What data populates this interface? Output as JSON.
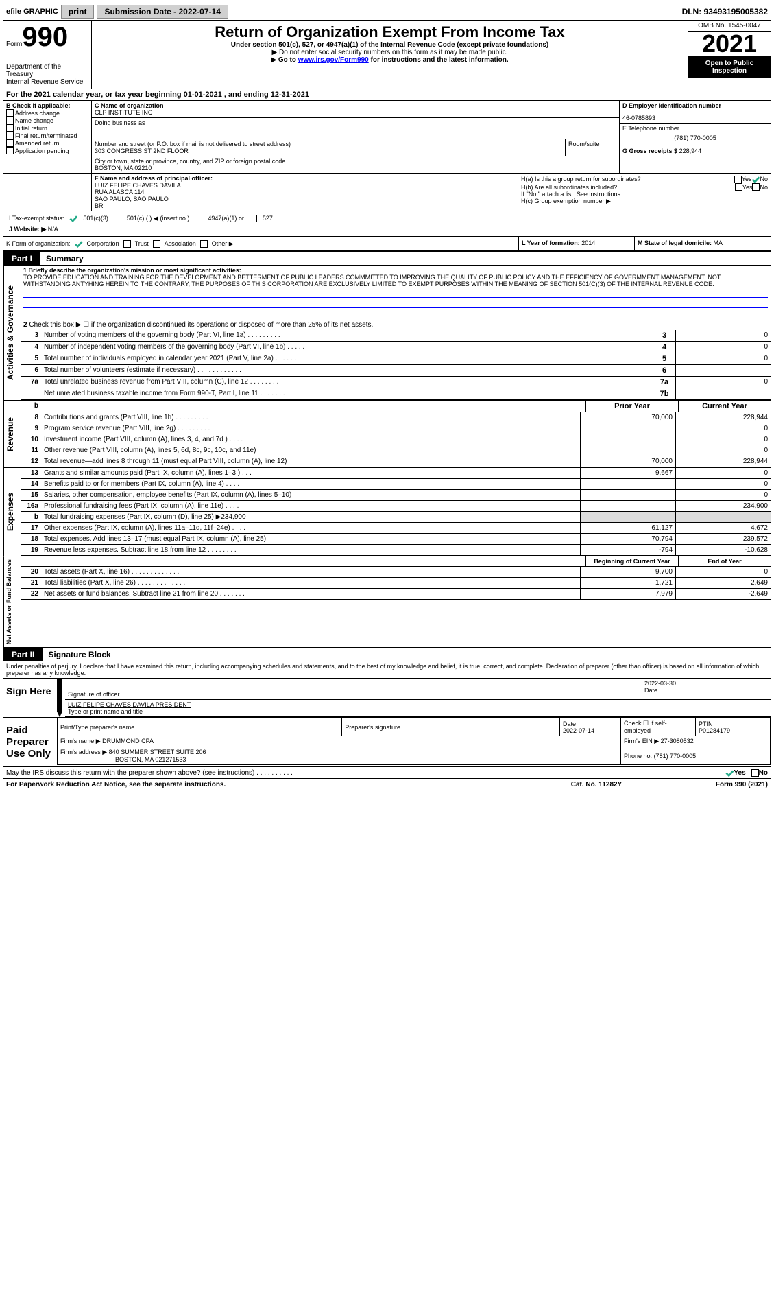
{
  "topbar": {
    "efile": "efile GRAPHIC",
    "print": "print",
    "sub_date_label": "Submission Date - 2022-07-14",
    "dln": "DLN: 93493195005382"
  },
  "header": {
    "form_label": "Form",
    "form_no": "990",
    "dept": "Department of the Treasury",
    "irs": "Internal Revenue Service",
    "title": "Return of Organization Exempt From Income Tax",
    "sub1": "Under section 501(c), 527, or 4947(a)(1) of the Internal Revenue Code (except private foundations)",
    "sub2": "▶ Do not enter social security numbers on this form as it may be made public.",
    "sub3": "▶ Go to ",
    "sub3_link": "www.irs.gov/Form990",
    "sub3_rest": " for instructions and the latest information.",
    "omb": "OMB No. 1545-0047",
    "year": "2021",
    "open": "Open to Public Inspection"
  },
  "line_a": "For the 2021 calendar year, or tax year beginning 01-01-2021  , and ending 12-31-2021",
  "sec_b": {
    "title": "B Check if applicable:",
    "opts": [
      "Address change",
      "Name change",
      "Initial return",
      "Final return/terminated",
      "Amended return",
      "Application pending"
    ]
  },
  "sec_c": {
    "label_name": "C Name of organization",
    "name": "CLP INSTITUTE INC",
    "dba": "Doing business as",
    "addr_label": "Number and street (or P.O. box if mail is not delivered to street address)",
    "room_label": "Room/suite",
    "addr": "303 CONGRESS ST 2ND FLOOR",
    "city_label": "City or town, state or province, country, and ZIP or foreign postal code",
    "city": "BOSTON, MA  02210"
  },
  "sec_d": {
    "label": "D Employer identification number",
    "val": "46-0785893"
  },
  "sec_e": {
    "label": "E Telephone number",
    "val": "(781) 770-0005"
  },
  "sec_g": {
    "label": "G Gross receipts $",
    "val": "228,944"
  },
  "sec_f": {
    "label": "F  Name and address of principal officer:",
    "name": "LUIZ FELIPE CHAVES DAVILA",
    "addr1": "RUA ALASCA 114",
    "addr2": "SAO PAULO, SAO PAULO",
    "addr3": "BR"
  },
  "sec_h": {
    "ha": "H(a)  Is this a group return for subordinates?",
    "hb": "H(b)  Are all subordinates included?",
    "hnote": "If \"No,\" attach a list. See instructions.",
    "hc": "H(c)  Group exemption number ▶"
  },
  "sec_i": {
    "label": "I    Tax-exempt status:",
    "opts": [
      "501(c)(3)",
      "501(c) (  ) ◀ (insert no.)",
      "4947(a)(1) or",
      "527"
    ]
  },
  "sec_j": {
    "label": "J   Website: ▶",
    "val": "N/A"
  },
  "sec_k": {
    "label": "K Form of organization:",
    "opts": [
      "Corporation",
      "Trust",
      "Association",
      "Other ▶"
    ]
  },
  "sec_l": {
    "label": "L Year of formation:",
    "val": "2014"
  },
  "sec_m": {
    "label": "M State of legal domicile:",
    "val": "MA"
  },
  "part1": {
    "label": "Part I",
    "title": "Summary"
  },
  "mission": {
    "label": "1  Briefly describe the organization's mission or most significant activities:",
    "text": "TO PROVIDE EDUCATION AND TRAINING FOR THE DEVELOPMENT AND BETTERMENT OF PUBLIC LEADERS COMMMITTED TO IMPROVING THE QUALITY OF PUBLIC POLICY AND THE EFFICIENCY OF GOVERMMENT MANAGEMENT. NOT WITHSTANDING ANTYHING HEREIN TO THE CONTRARY, THE PURPOSES OF THIS CORPORATION ARE EXCLUSIVELY LIMITED TO EXEMPT PURPOSES WITHIN THE MEANING OF SECTION 501(C)(3) OF THE INTERNAL REVENUE CODE."
  },
  "activities": {
    "vlabel": "Activities & Governance",
    "l2": "Check this box ▶ ☐ if the organization discontinued its operations or disposed of more than 25% of its net assets.",
    "rows": [
      {
        "n": "3",
        "t": "Number of voting members of the governing body (Part VI, line 1a)  .    .    .    .    .    .    .    .    .",
        "c": "3",
        "v": "0"
      },
      {
        "n": "4",
        "t": "Number of independent voting members of the governing body (Part VI, line 1b)   .    .    .    .    .",
        "c": "4",
        "v": "0"
      },
      {
        "n": "5",
        "t": "Total number of individuals employed in calendar year 2021 (Part V, line 2a)    .    .    .    .    .    .",
        "c": "5",
        "v": "0"
      },
      {
        "n": "6",
        "t": "Total number of volunteers (estimate if necessary)   .    .    .    .    .    .    .    .    .    .    .    .",
        "c": "6",
        "v": ""
      },
      {
        "n": "7a",
        "t": "Total unrelated business revenue from Part VIII, column (C), line 12    .    .    .    .    .    .    .    .",
        "c": "7a",
        "v": "0"
      },
      {
        "n": "",
        "t": "Net unrelated business taxable income from Form 990-T, Part I, line 11    .    .    .    .    .    .    .",
        "c": "7b",
        "v": ""
      }
    ]
  },
  "revenue": {
    "vlabel": "Revenue",
    "prior": "Prior Year",
    "current": "Current Year",
    "rows": [
      {
        "n": "8",
        "t": "Contributions and grants (Part VIII, line 1h)    .    .    .    .    .    .    .    .    .",
        "p": "70,000",
        "c": "228,944"
      },
      {
        "n": "9",
        "t": "Program service revenue (Part VIII, line 2g)    .    .    .    .    .    .    .    .    .",
        "p": "",
        "c": "0"
      },
      {
        "n": "10",
        "t": "Investment income (Part VIII, column (A), lines 3, 4, and 7d )    .    .    .    .",
        "p": "",
        "c": "0"
      },
      {
        "n": "11",
        "t": "Other revenue (Part VIII, column (A), lines 5, 6d, 8c, 9c, 10c, and 11e)",
        "p": "",
        "c": "0"
      },
      {
        "n": "12",
        "t": "Total revenue—add lines 8 through 11 (must equal Part VIII, column (A), line 12)",
        "p": "70,000",
        "c": "228,944"
      }
    ]
  },
  "expenses": {
    "vlabel": "Expenses",
    "rows": [
      {
        "n": "13",
        "t": "Grants and similar amounts paid (Part IX, column (A), lines 1–3 )    .    .    .",
        "p": "9,667",
        "c": "0"
      },
      {
        "n": "14",
        "t": "Benefits paid to or for members (Part IX, column (A), line 4)    .    .    .    .",
        "p": "",
        "c": "0"
      },
      {
        "n": "15",
        "t": "Salaries, other compensation, employee benefits (Part IX, column (A), lines 5–10)",
        "p": "",
        "c": "0"
      },
      {
        "n": "16a",
        "t": "Professional fundraising fees (Part IX, column (A), line 11e)    .    .    .    .",
        "p": "",
        "c": "234,900"
      },
      {
        "n": "b",
        "t": "Total fundraising expenses (Part IX, column (D), line 25) ▶234,900",
        "p": "shaded",
        "c": "shaded"
      },
      {
        "n": "17",
        "t": "Other expenses (Part IX, column (A), lines 11a–11d, 11f–24e)    .    .    .    .",
        "p": "61,127",
        "c": "4,672"
      },
      {
        "n": "18",
        "t": "Total expenses. Add lines 13–17 (must equal Part IX, column (A), line 25)",
        "p": "70,794",
        "c": "239,572"
      },
      {
        "n": "19",
        "t": "Revenue less expenses. Subtract line 18 from line 12    .    .    .    .    .    .    .    .",
        "p": "-794",
        "c": "-10,628"
      }
    ]
  },
  "netassets": {
    "vlabel": "Net Assets or Fund Balances",
    "begin": "Beginning of Current Year",
    "end": "End of Year",
    "rows": [
      {
        "n": "20",
        "t": "Total assets (Part X, line 16)    .    .    .    .    .    .    .    .    .    .    .    .    .    .",
        "p": "9,700",
        "c": "0"
      },
      {
        "n": "21",
        "t": "Total liabilities (Part X, line 26)    .    .    .    .    .    .    .    .    .    .    .    .    .",
        "p": "1,721",
        "c": "2,649"
      },
      {
        "n": "22",
        "t": "Net assets or fund balances. Subtract line 21 from line 20    .    .    .    .    .    .    .",
        "p": "7,979",
        "c": "-2,649"
      }
    ]
  },
  "part2": {
    "label": "Part II",
    "title": "Signature Block"
  },
  "sig": {
    "decl": "Under penalties of perjury, I declare that I have examined this return, including accompanying schedules and statements, and to the best of my knowledge and belief, it is true, correct, and complete. Declaration of preparer (other than officer) is based on all information of which preparer has any knowledge.",
    "sign_here": "Sign Here",
    "sig_officer": "Signature of officer",
    "date": "2022-03-30",
    "date_label": "Date",
    "name": "LUIZ FELIPE CHAVES DAVILA  PRESIDENT",
    "name_label": "Type or print name and title",
    "paid": "Paid Preparer Use Only",
    "prep_name_label": "Print/Type preparer's name",
    "prep_sig_label": "Preparer's signature",
    "prep_date": "2022-07-14",
    "self_emp": "Check ☐ if self-employed",
    "ptin_label": "PTIN",
    "ptin": "P01284179",
    "firm_name_label": "Firm's name    ▶",
    "firm_name": "DRUMMOND CPA",
    "firm_ein_label": "Firm's EIN ▶",
    "firm_ein": "27-3080532",
    "firm_addr_label": "Firm's address ▶",
    "firm_addr1": "840 SUMMER STREET SUITE 206",
    "firm_addr2": "BOSTON, MA  021271533",
    "phone_label": "Phone no.",
    "phone": "(781) 770-0005",
    "discuss": "May the IRS discuss this return with the preparer shown above? (see instructions)    .    .    .    .    .    .    .    .    .    ."
  },
  "footer": {
    "left": "For Paperwork Reduction Act Notice, see the separate instructions.",
    "mid": "Cat. No. 11282Y",
    "right": "Form 990 (2021)"
  },
  "yes": "Yes",
  "no": "No"
}
